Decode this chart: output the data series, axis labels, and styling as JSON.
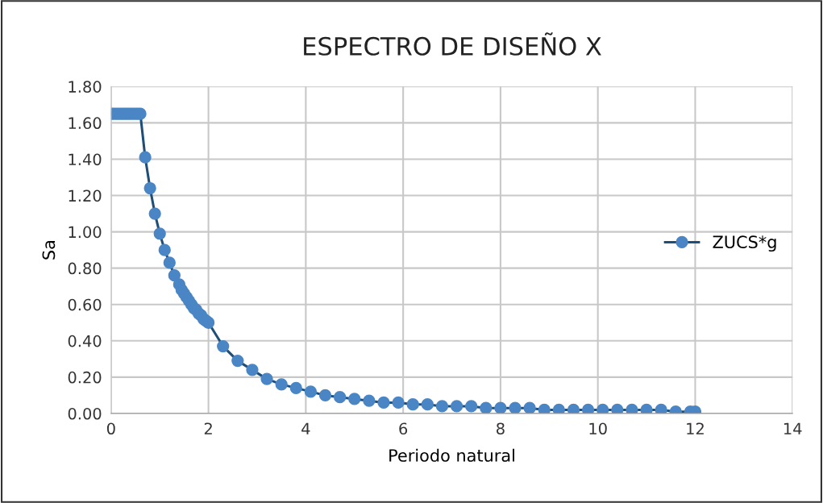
{
  "chart_data": {
    "type": "line",
    "title": "ESPECTRO DE DISEÑO X",
    "xlabel": "Periodo natural",
    "ylabel": "Sa",
    "series": [
      {
        "name": "ZUCS*g",
        "color": "#4a86c5",
        "x": [
          0,
          0.05,
          0.1,
          0.15,
          0.2,
          0.25,
          0.3,
          0.35,
          0.4,
          0.45,
          0.5,
          0.55,
          0.6,
          0.7,
          0.8,
          0.9,
          1.0,
          1.1,
          1.2,
          1.3,
          1.4,
          1.45,
          1.5,
          1.55,
          1.6,
          1.65,
          1.7,
          1.75,
          1.8,
          1.85,
          1.9,
          1.95,
          2.0,
          2.3,
          2.6,
          2.9,
          3.2,
          3.5,
          3.8,
          4.1,
          4.4,
          4.7,
          5.0,
          5.3,
          5.6,
          5.9,
          6.2,
          6.5,
          6.8,
          7.1,
          7.4,
          7.7,
          8.0,
          8.3,
          8.6,
          8.9,
          9.2,
          9.5,
          9.8,
          10.1,
          10.4,
          10.7,
          11.0,
          11.3,
          11.6,
          11.9,
          12.0
        ],
        "values": [
          1.65,
          1.65,
          1.65,
          1.65,
          1.65,
          1.65,
          1.65,
          1.65,
          1.65,
          1.65,
          1.65,
          1.65,
          1.65,
          1.41,
          1.24,
          1.1,
          0.99,
          0.9,
          0.83,
          0.76,
          0.71,
          0.68,
          0.66,
          0.64,
          0.62,
          0.6,
          0.58,
          0.57,
          0.55,
          0.54,
          0.52,
          0.51,
          0.5,
          0.37,
          0.29,
          0.24,
          0.19,
          0.16,
          0.14,
          0.12,
          0.1,
          0.09,
          0.08,
          0.07,
          0.06,
          0.06,
          0.05,
          0.05,
          0.04,
          0.04,
          0.04,
          0.03,
          0.03,
          0.03,
          0.03,
          0.02,
          0.02,
          0.02,
          0.02,
          0.02,
          0.02,
          0.02,
          0.02,
          0.02,
          0.01,
          0.01,
          0.01
        ]
      }
    ],
    "xlim": [
      0,
      14
    ],
    "xticks": [
      0,
      2,
      4,
      6,
      8,
      10,
      12,
      14
    ],
    "ylim": [
      0,
      1.8
    ],
    "yticks": [
      {
        "value": 0,
        "label": "0.00"
      },
      {
        "value": 0.2,
        "label": "0.20"
      },
      {
        "value": 0.4,
        "label": "0.40"
      },
      {
        "value": 0.6,
        "label": "0.60"
      },
      {
        "value": 0.8,
        "label": "0.80"
      },
      {
        "value": 1.0,
        "label": "1.00"
      },
      {
        "value": 1.2,
        "label": "1.20"
      },
      {
        "value": 1.4,
        "label": "1.40"
      },
      {
        "value": 1.6,
        "label": "1.60"
      },
      {
        "value": 1.8,
        "label": "1.80"
      }
    ],
    "grid": true,
    "legend": "right",
    "marker": "circle",
    "line_style": "solid"
  }
}
